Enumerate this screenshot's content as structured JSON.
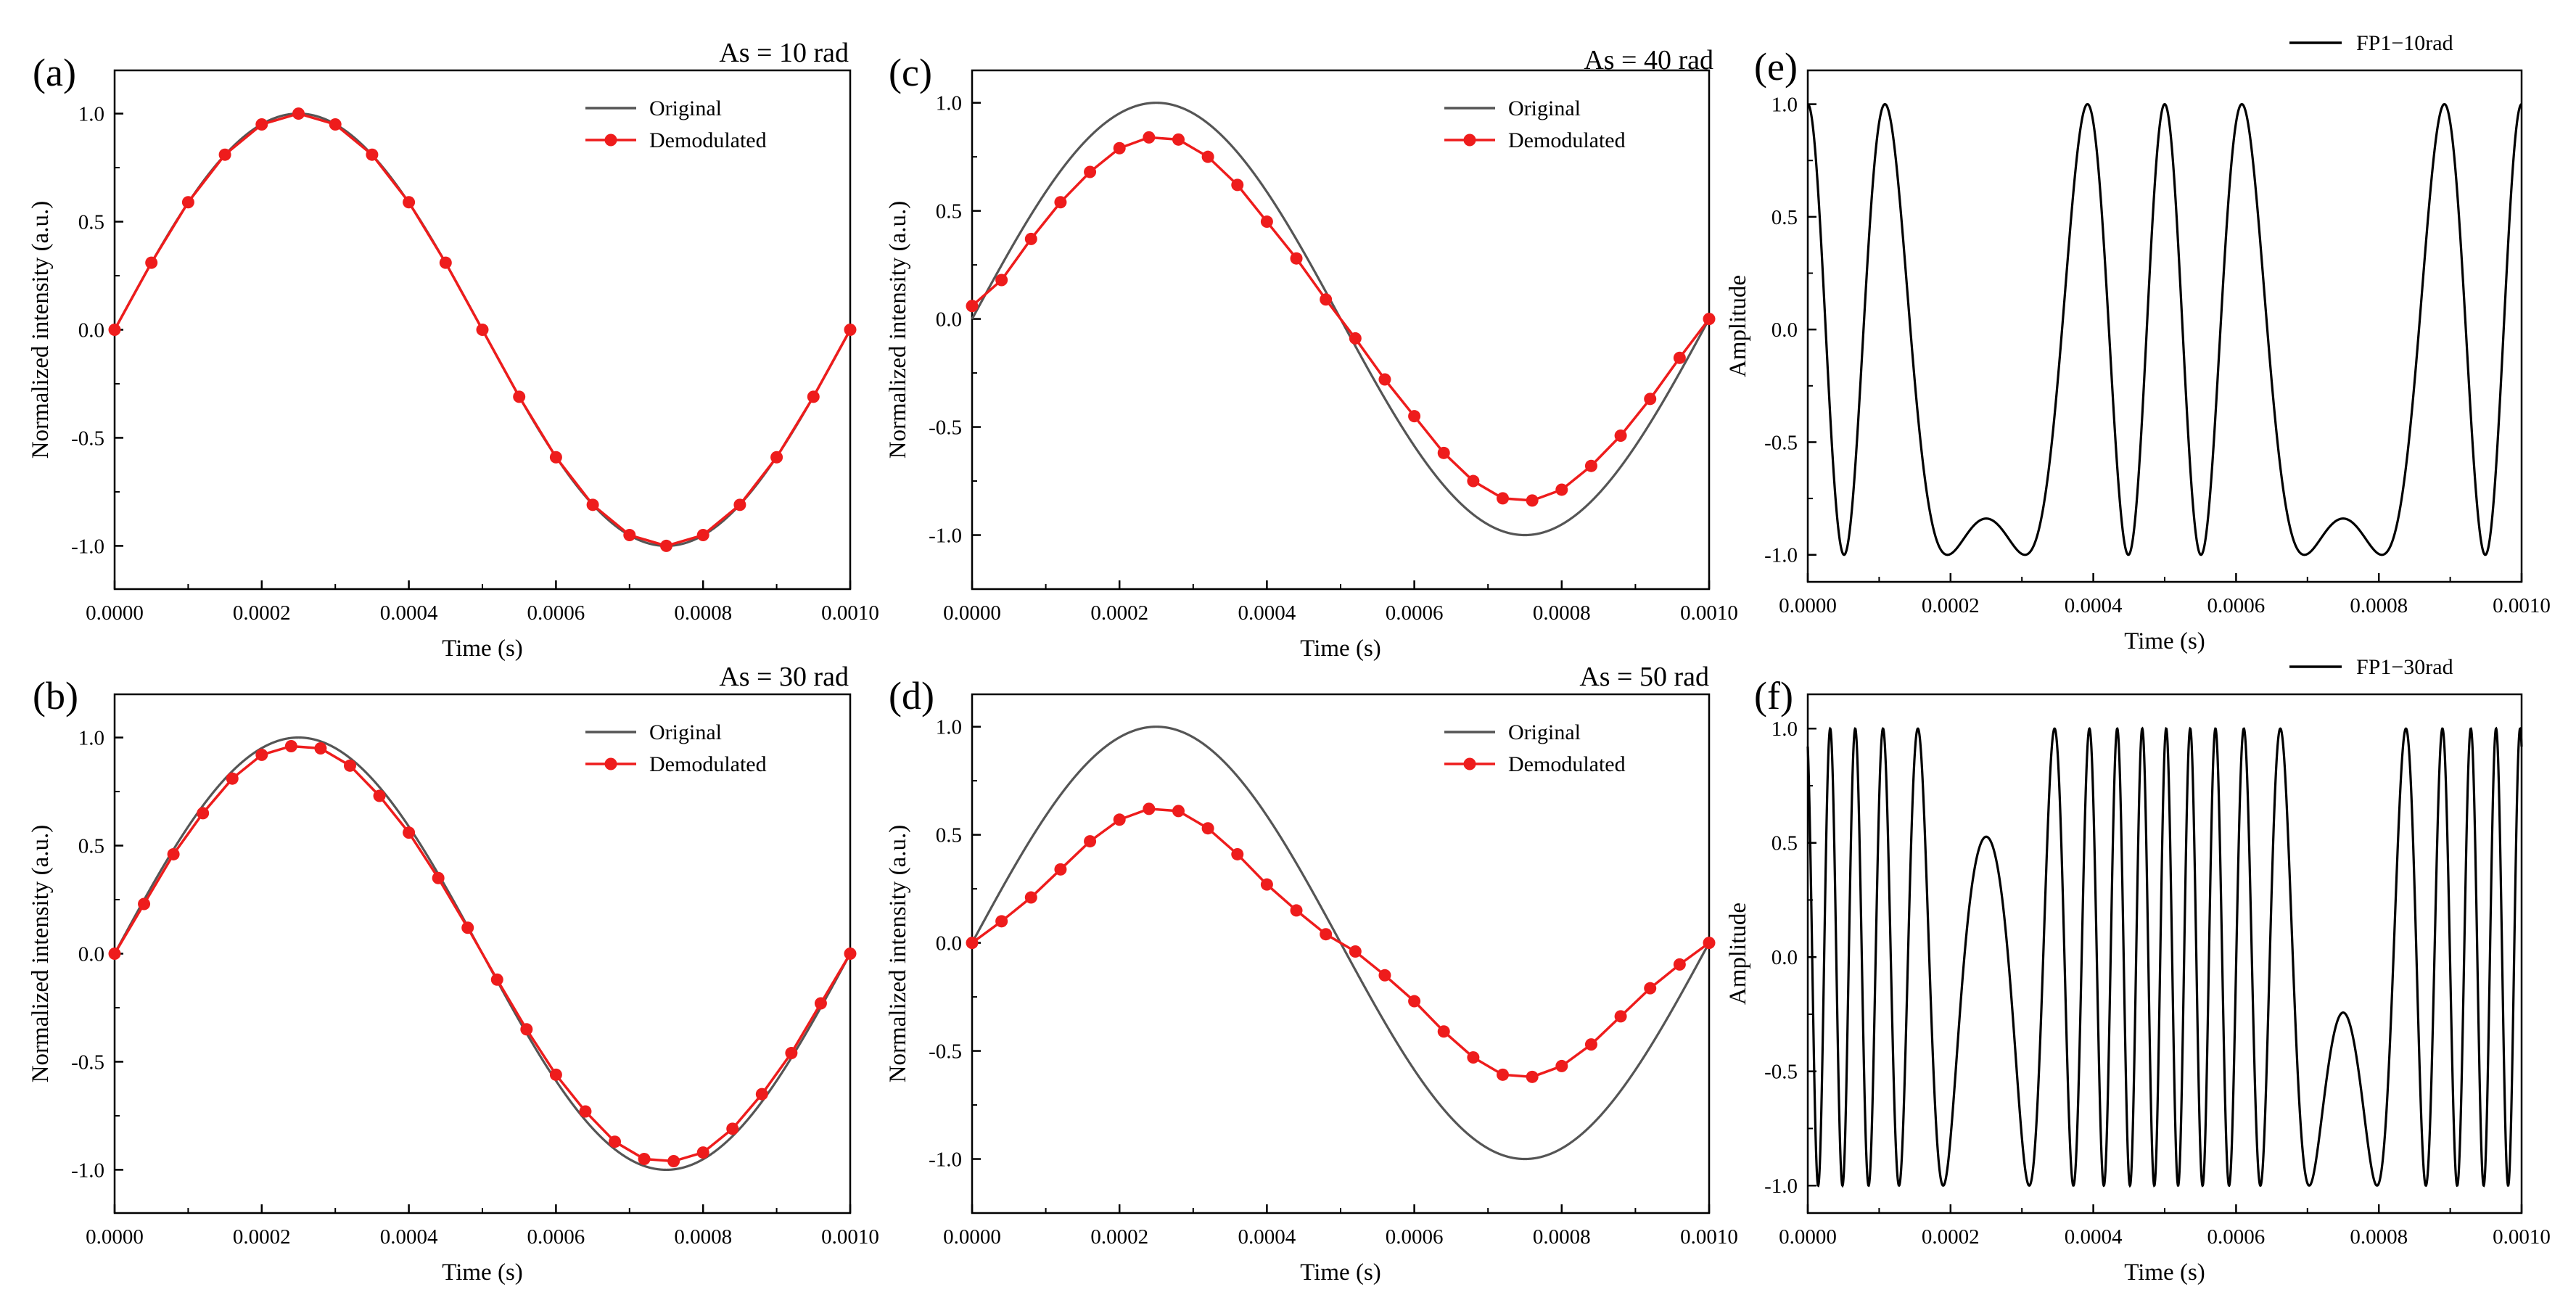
{
  "figure": {
    "background": "#ffffff"
  },
  "chart_data": [
    {
      "id": "a",
      "type": "line",
      "panel_label": "(a)",
      "title": "As = 10 rad",
      "xlabel": "Time (s)",
      "ylabel": "Normalized intensity (a.u.)",
      "xlim": [
        0,
        0.001
      ],
      "ylim": [
        -1.2,
        1.2
      ],
      "xticks": [
        "0.0000",
        "0.0002",
        "0.0004",
        "0.0006",
        "0.0008",
        "0.0010"
      ],
      "yticks": [
        "-1.0",
        "-0.5",
        "0.0",
        "0.5",
        "1.0"
      ],
      "legend_position": "top-right",
      "series": [
        {
          "name": "Original",
          "color": "#555555",
          "marker": "none",
          "x_range": [
            0,
            0.001
          ],
          "amplitude": 1.0,
          "shape": "sine"
        },
        {
          "name": "Demodulated",
          "color": "#ee1c1c",
          "marker": "circle",
          "x": [
            0,
            5e-05,
            0.0001,
            0.00015,
            0.0002,
            0.00025,
            0.0003,
            0.00035,
            0.0004,
            0.00045,
            0.0005,
            0.00055,
            0.0006,
            0.00065,
            0.0007,
            0.00075,
            0.0008,
            0.00085,
            0.0009,
            0.00095,
            0.001
          ],
          "y": [
            0.0,
            0.31,
            0.59,
            0.81,
            0.95,
            1.0,
            0.95,
            0.81,
            0.59,
            0.31,
            0.0,
            -0.31,
            -0.59,
            -0.81,
            -0.95,
            -1.0,
            -0.95,
            -0.81,
            -0.59,
            -0.31,
            0.0
          ]
        }
      ]
    },
    {
      "id": "b",
      "type": "line",
      "panel_label": "(b)",
      "title": "As = 30 rad",
      "xlabel": "Time (s)",
      "ylabel": "Normalized intensity (a.u.)",
      "xlim": [
        0,
        0.001
      ],
      "ylim": [
        -1.2,
        1.2
      ],
      "xticks": [
        "0.0000",
        "0.0002",
        "0.0004",
        "0.0006",
        "0.0008",
        "0.0010"
      ],
      "yticks": [
        "-1.0",
        "-0.5",
        "0.0",
        "0.5",
        "1.0"
      ],
      "legend_position": "top-right",
      "series": [
        {
          "name": "Original",
          "color": "#555555",
          "marker": "none",
          "x_range": [
            0,
            0.001
          ],
          "amplitude": 1.0,
          "shape": "sine"
        },
        {
          "name": "Demodulated",
          "color": "#ee1c1c",
          "marker": "circle",
          "x": [
            0,
            4e-05,
            8e-05,
            0.00012,
            0.00016,
            0.0002,
            0.00024,
            0.00028,
            0.00032,
            0.00036,
            0.0004,
            0.00044,
            0.00048,
            0.00052,
            0.00056,
            0.0006,
            0.00064,
            0.00068,
            0.00072,
            0.00076,
            0.0008,
            0.00084,
            0.00088,
            0.00092,
            0.00096,
            0.001
          ],
          "y": [
            0.0,
            0.23,
            0.46,
            0.65,
            0.81,
            0.92,
            0.96,
            0.95,
            0.87,
            0.73,
            0.56,
            0.35,
            0.12,
            -0.12,
            -0.35,
            -0.56,
            -0.73,
            -0.87,
            -0.95,
            -0.96,
            -0.92,
            -0.81,
            -0.65,
            -0.46,
            -0.23,
            0.0
          ]
        }
      ]
    },
    {
      "id": "c",
      "type": "line",
      "panel_label": "(c)",
      "title": "As = 40 rad",
      "xlabel": "Time (s)",
      "ylabel": "Normalized intensity (a.u.)",
      "xlim": [
        0,
        0.001
      ],
      "ylim": [
        -1.25,
        1.15
      ],
      "xticks": [
        "0.0000",
        "0.0002",
        "0.0004",
        "0.0006",
        "0.0008",
        "0.0010"
      ],
      "yticks": [
        "-1.0",
        "-0.5",
        "0.0",
        "0.5",
        "1.0"
      ],
      "legend_position": "top-right",
      "series": [
        {
          "name": "Original",
          "color": "#555555",
          "marker": "none",
          "x_range": [
            0,
            0.001
          ],
          "amplitude": 1.0,
          "shape": "sine"
        },
        {
          "name": "Demodulated",
          "color": "#ee1c1c",
          "marker": "circle",
          "x": [
            0,
            4e-05,
            8e-05,
            0.00012,
            0.00016,
            0.0002,
            0.00024,
            0.00028,
            0.00032,
            0.00036,
            0.0004,
            0.00044,
            0.00048,
            0.00052,
            0.00056,
            0.0006,
            0.00064,
            0.00068,
            0.00072,
            0.00076,
            0.0008,
            0.00084,
            0.00088,
            0.00092,
            0.00096,
            0.001
          ],
          "y": [
            0.06,
            0.18,
            0.37,
            0.54,
            0.68,
            0.79,
            0.84,
            0.83,
            0.75,
            0.62,
            0.45,
            0.28,
            0.09,
            -0.09,
            -0.28,
            -0.45,
            -0.62,
            -0.75,
            -0.83,
            -0.84,
            -0.79,
            -0.68,
            -0.54,
            -0.37,
            -0.18,
            0.0
          ]
        }
      ]
    },
    {
      "id": "d",
      "type": "line",
      "panel_label": "(d)",
      "title": "As = 50 rad",
      "xlabel": "Time (s)",
      "ylabel": "Normalized intensity (a.u.)",
      "xlim": [
        0,
        0.001
      ],
      "ylim": [
        -1.25,
        1.15
      ],
      "xticks": [
        "0.0000",
        "0.0002",
        "0.0004",
        "0.0006",
        "0.0008",
        "0.0010"
      ],
      "yticks": [
        "-1.0",
        "-0.5",
        "0.0",
        "0.5",
        "1.0"
      ],
      "legend_position": "top-right",
      "series": [
        {
          "name": "Original",
          "color": "#555555",
          "marker": "none",
          "x_range": [
            0,
            0.001
          ],
          "amplitude": 1.0,
          "shape": "sine"
        },
        {
          "name": "Demodulated",
          "color": "#ee1c1c",
          "marker": "circle",
          "x": [
            0,
            4e-05,
            8e-05,
            0.00012,
            0.00016,
            0.0002,
            0.00024,
            0.00028,
            0.00032,
            0.00036,
            0.0004,
            0.00044,
            0.00048,
            0.00052,
            0.00056,
            0.0006,
            0.00064,
            0.00068,
            0.00072,
            0.00076,
            0.0008,
            0.00084,
            0.00088,
            0.00092,
            0.00096,
            0.001
          ],
          "y": [
            0.0,
            0.1,
            0.21,
            0.34,
            0.47,
            0.57,
            0.62,
            0.61,
            0.53,
            0.41,
            0.27,
            0.15,
            0.04,
            -0.04,
            -0.15,
            -0.27,
            -0.41,
            -0.53,
            -0.61,
            -0.62,
            -0.57,
            -0.47,
            -0.34,
            -0.21,
            -0.1,
            0.0
          ]
        }
      ]
    },
    {
      "id": "e",
      "type": "line",
      "panel_label": "(e)",
      "title": "",
      "xlabel": "Time (s)",
      "ylabel": "Amplitude",
      "xlim": [
        0,
        0.001
      ],
      "ylim": [
        -1.12,
        1.15
      ],
      "xticks": [
        "0.0000",
        "0.0002",
        "0.0004",
        "0.0006",
        "0.0008",
        "0.0010"
      ],
      "yticks": [
        "-1.0",
        "-0.5",
        "0.0",
        "0.5",
        "1.0"
      ],
      "legend_position": "top-right (outside)",
      "series": [
        {
          "name": "FP1−10rad",
          "color": "#000000",
          "marker": "none",
          "x_range": [
            0,
            0.001
          ],
          "phase_amplitude_rad": 10,
          "phase_offset": 0,
          "shape": "cos-of-sine"
        }
      ]
    },
    {
      "id": "f",
      "type": "line",
      "panel_label": "(f)",
      "title": "",
      "xlabel": "Time (s)",
      "ylabel": "Amplitude",
      "xlim": [
        0,
        0.001
      ],
      "ylim": [
        -1.12,
        1.15
      ],
      "xticks": [
        "0.0000",
        "0.0002",
        "0.0004",
        "0.0006",
        "0.0008",
        "0.0010"
      ],
      "yticks": [
        "-1.0",
        "-0.5",
        "0.0",
        "0.5",
        "1.0"
      ],
      "legend_position": "top-right (outside)",
      "series": [
        {
          "name": "FP1−30rad",
          "color": "#000000",
          "marker": "none",
          "x_range": [
            0,
            0.001
          ],
          "phase_amplitude_rad": 30,
          "phase_offset": 0.4,
          "shape": "cos-of-sine"
        }
      ]
    }
  ]
}
